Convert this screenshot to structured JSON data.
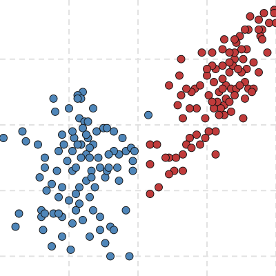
{
  "chart_data": {
    "type": "scatter",
    "title": "",
    "xlabel": "",
    "ylabel": "",
    "xlim": [
      -5.0,
      11.0
    ],
    "ylim": [
      -4.2,
      4.2
    ],
    "grid": true,
    "grid_x": [
      -1.0,
      3.0,
      7.0,
      11.0
    ],
    "grid_y": [
      -3.6,
      -1.6,
      0.4,
      2.4,
      4.4
    ],
    "colors": {
      "blue": "#4f86b9",
      "red": "#c03b3b",
      "grid": "#e2e2e2",
      "edge": "#111111"
    },
    "series": [
      {
        "color": "blue",
        "points": [
          [
            -0.2,
            1.4
          ],
          [
            0.4,
            -0.2
          ],
          [
            -4.8,
            0.0
          ],
          [
            -3.9,
            -2.3
          ],
          [
            -2.3,
            -1.6
          ],
          [
            -1.4,
            -1.5
          ],
          [
            -0.8,
            -1.0
          ],
          [
            -0.8,
            -0.4
          ],
          [
            -0.6,
            -0.9
          ],
          [
            -0.7,
            0.0
          ],
          [
            -0.8,
            0.2
          ],
          [
            -0.4,
            0.6
          ],
          [
            -0.1,
            0.5
          ],
          [
            -0.3,
            -0.2
          ],
          [
            0.7,
            -0.6
          ],
          [
            -1.1,
            -0.7
          ],
          [
            -1.7,
            -1.0
          ],
          [
            -1.6,
            -0.4
          ],
          [
            -1.6,
            -1.8
          ],
          [
            -1.4,
            -2.4
          ],
          [
            -0.8,
            -2.6
          ],
          [
            -0.6,
            -2.2
          ],
          [
            -0.2,
            -2.5
          ],
          [
            0.2,
            -1.8
          ],
          [
            0.0,
            -1.3
          ],
          [
            0.3,
            -1.0
          ],
          [
            0.5,
            -1.5
          ],
          [
            1.1,
            -1.2
          ],
          [
            0.8,
            -2.8
          ],
          [
            1.4,
            -2.7
          ],
          [
            1.8,
            -0.9
          ],
          [
            2.3,
            -2.2
          ],
          [
            2.7,
            -1.0
          ],
          [
            1.9,
            -0.5
          ],
          [
            0.2,
            -0.3
          ],
          [
            0.0,
            -0.5
          ],
          [
            -0.3,
            -0.2
          ],
          [
            0.0,
            0.1
          ],
          [
            0.1,
            0.0
          ],
          [
            -0.5,
            -0.2
          ],
          [
            -0.3,
            -0.6
          ],
          [
            0.8,
            -0.9
          ],
          [
            1.2,
            -1.0
          ],
          [
            0.6,
            0.2
          ],
          [
            2.1,
            0.0
          ],
          [
            3.6,
            0.7
          ],
          [
            2.7,
            -0.7
          ],
          [
            -0.2,
            0.3
          ],
          [
            1.6,
            -0.4
          ],
          [
            -2.7,
            -1.2
          ],
          [
            -4.1,
            -2.7
          ],
          [
            -3.5,
            -0.1
          ],
          [
            -2.0,
            -1.4
          ],
          [
            -1.3,
            -0.2
          ],
          [
            -0.6,
            -1.7
          ],
          [
            0.3,
            -1.2
          ],
          [
            1.3,
            -0.5
          ],
          [
            2.3,
            -0.4
          ],
          [
            0.4,
            -2.2
          ],
          [
            -1.4,
            0.1
          ],
          [
            -2.5,
            -2.8
          ],
          [
            -2.4,
            -0.6
          ],
          [
            -1.9,
            -2.3
          ],
          [
            -2.6,
            -2.2
          ],
          [
            -2.0,
            -3.3
          ],
          [
            -0.9,
            -3.4
          ],
          [
            -1.4,
            -3.0
          ],
          [
            -1.0,
            -1.9
          ],
          [
            -0.4,
            -2.0
          ],
          [
            -2.6,
            -2.4
          ],
          [
            -0.5,
            1.3
          ],
          [
            -3.7,
            0.2
          ],
          [
            -1.6,
            -2.3
          ],
          [
            -2.4,
            -2.3
          ],
          [
            0.2,
            -3.0
          ],
          [
            1.1,
            -3.2
          ],
          [
            0.8,
            -2.4
          ],
          [
            1.4,
            -3.6
          ],
          [
            1.6,
            -2.8
          ],
          [
            2.5,
            -3.6
          ],
          [
            -1.8,
            0.8
          ],
          [
            -1.9,
            1.2
          ],
          [
            -1.0,
            0.9
          ],
          [
            -0.3,
            1.2
          ],
          [
            -0.5,
            1.2
          ],
          [
            0.1,
            0.5
          ],
          [
            0.4,
            0.9
          ],
          [
            1.0,
            0.3
          ],
          [
            1.2,
            0.3
          ],
          [
            1.6,
            0.2
          ],
          [
            2.6,
            -0.3
          ],
          [
            2.8,
            -0.4
          ],
          [
            1.3,
            -0.9
          ],
          [
            1.9,
            -1.3
          ],
          [
            0.2,
            -0.6
          ],
          [
            -0.6,
            -2.2
          ],
          [
            -0.4,
            -1.5
          ],
          [
            -2.8,
            -0.2
          ],
          [
            -2.4,
            -0.9
          ],
          [
            0.0,
            0.1
          ]
        ]
      },
      {
        "color": "red",
        "points": [
          [
            9.3,
            2.7
          ],
          [
            10.2,
            3.3
          ],
          [
            10.3,
            3.8
          ],
          [
            9.4,
            3.3
          ],
          [
            9.5,
            3.7
          ],
          [
            9.2,
            3.3
          ],
          [
            8.9,
            3.1
          ],
          [
            9.0,
            2.7
          ],
          [
            8.6,
            2.4
          ],
          [
            8.7,
            2.9
          ],
          [
            10.1,
            3.1
          ],
          [
            10.0,
            3.6
          ],
          [
            10.6,
            3.5
          ],
          [
            10.9,
            3.9
          ],
          [
            11.0,
            3.5
          ],
          [
            10.5,
            2.6
          ],
          [
            10.0,
            2.0
          ],
          [
            9.2,
            1.7
          ],
          [
            9.3,
            2.1
          ],
          [
            9.7,
            2.3
          ],
          [
            9.0,
            2.0
          ],
          [
            8.5,
            2.2
          ],
          [
            8.6,
            2.6
          ],
          [
            7.9,
            2.7
          ],
          [
            7.5,
            2.1
          ],
          [
            7.3,
            2.2
          ],
          [
            7.4,
            1.7
          ],
          [
            7.1,
            1.3
          ],
          [
            7.7,
            1.4
          ],
          [
            7.6,
            1.1
          ],
          [
            8.1,
            1.6
          ],
          [
            8.3,
            2.0
          ],
          [
            8.8,
            2.1
          ],
          [
            9.4,
            1.5
          ],
          [
            9.7,
            1.5
          ],
          [
            9.6,
            1.4
          ],
          [
            9.1,
            0.6
          ],
          [
            8.4,
            0.8
          ],
          [
            8.4,
            1.5
          ],
          [
            8.0,
            1.0
          ],
          [
            8.7,
            1.5
          ],
          [
            8.1,
            1.2
          ],
          [
            8.0,
            0.7
          ],
          [
            7.5,
            0.2
          ],
          [
            6.9,
            0.6
          ],
          [
            6.4,
            0.9
          ],
          [
            6.3,
            1.5
          ],
          [
            7.1,
            0.2
          ],
          [
            7.5,
            -0.5
          ],
          [
            6.6,
            -0.2
          ],
          [
            6.0,
            0.0
          ],
          [
            5.1,
            -1.0
          ],
          [
            5.6,
            -1.0
          ],
          [
            5.6,
            -0.5
          ],
          [
            4.8,
            -0.6
          ],
          [
            4.6,
            -0.6
          ],
          [
            4.8,
            -1.1
          ],
          [
            5.8,
            -0.2
          ],
          [
            3.7,
            -0.2
          ],
          [
            4.1,
            -0.2
          ],
          [
            3.7,
            -0.8
          ],
          [
            4.2,
            -1.5
          ],
          [
            3.7,
            -1.7
          ],
          [
            6.4,
            0.1
          ],
          [
            6.9,
            0.0
          ],
          [
            6.1,
            1.4
          ],
          [
            5.8,
            1.5
          ],
          [
            5.6,
            0.6
          ],
          [
            6.6,
            1.6
          ],
          [
            7.3,
            2.6
          ],
          [
            7.9,
            2.2
          ],
          [
            8.6,
            1.3
          ],
          [
            8.9,
            1.6
          ],
          [
            9.2,
            1.2
          ],
          [
            8.3,
            1.1
          ],
          [
            7.8,
            0.9
          ],
          [
            7.4,
            0.9
          ],
          [
            8.0,
            3.0
          ],
          [
            7.0,
            1.9
          ],
          [
            8.6,
            3.0
          ],
          [
            10.9,
            3.8
          ],
          [
            10.2,
            3.0
          ],
          [
            10.0,
            3.3
          ],
          [
            9.1,
            2.4
          ],
          [
            8.3,
            2.6
          ],
          [
            6.0,
            0.9
          ],
          [
            5.5,
            1.3
          ],
          [
            7.9,
            1.5
          ],
          [
            7.3,
            1.1
          ],
          [
            7.7,
            0.7
          ],
          [
            5.3,
            1.0
          ],
          [
            4.8,
            1.6
          ],
          [
            5.4,
            1.9
          ],
          [
            7.0,
            2.1
          ],
          [
            6.7,
            2.6
          ],
          [
            5.5,
            2.4
          ],
          [
            6.1,
            -0.3
          ],
          [
            5.2,
            -0.6
          ],
          [
            7.9,
            1.8
          ],
          [
            8.3,
            2.3
          ]
        ]
      }
    ]
  }
}
